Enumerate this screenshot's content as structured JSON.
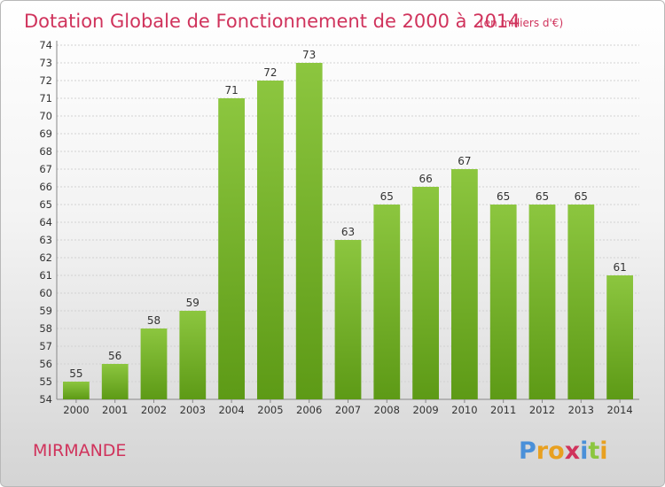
{
  "chart_data": {
    "type": "bar",
    "title": "Dotation Globale de Fonctionnement de 2000 à 2014",
    "subtitle": "(en milliers d'€)",
    "categories": [
      "2000",
      "2001",
      "2002",
      "2003",
      "2004",
      "2005",
      "2006",
      "2007",
      "2008",
      "2009",
      "2010",
      "2011",
      "2012",
      "2013",
      "2014"
    ],
    "values": [
      55,
      56,
      58,
      59,
      71,
      72,
      73,
      63,
      65,
      66,
      67,
      65,
      65,
      65,
      61
    ],
    "xlabel": "",
    "ylabel": "",
    "ylim": [
      54,
      74
    ],
    "yticks": [
      54,
      55,
      56,
      57,
      58,
      59,
      60,
      61,
      62,
      63,
      64,
      65,
      66,
      67,
      68,
      69,
      70,
      71,
      72,
      73,
      74
    ],
    "grid": true,
    "bar_color": "#8cc63f",
    "bar_color_dark": "#5d9a16"
  },
  "commune": "MIRMANDE",
  "logo": {
    "letters": [
      "P",
      "r",
      "o",
      "x",
      "i",
      "t",
      "i"
    ],
    "colors": [
      "#4a90d9",
      "#e8a020",
      "#e8a020",
      "#d0335c",
      "#4a90d9",
      "#8cc63f",
      "#e8a020"
    ]
  }
}
